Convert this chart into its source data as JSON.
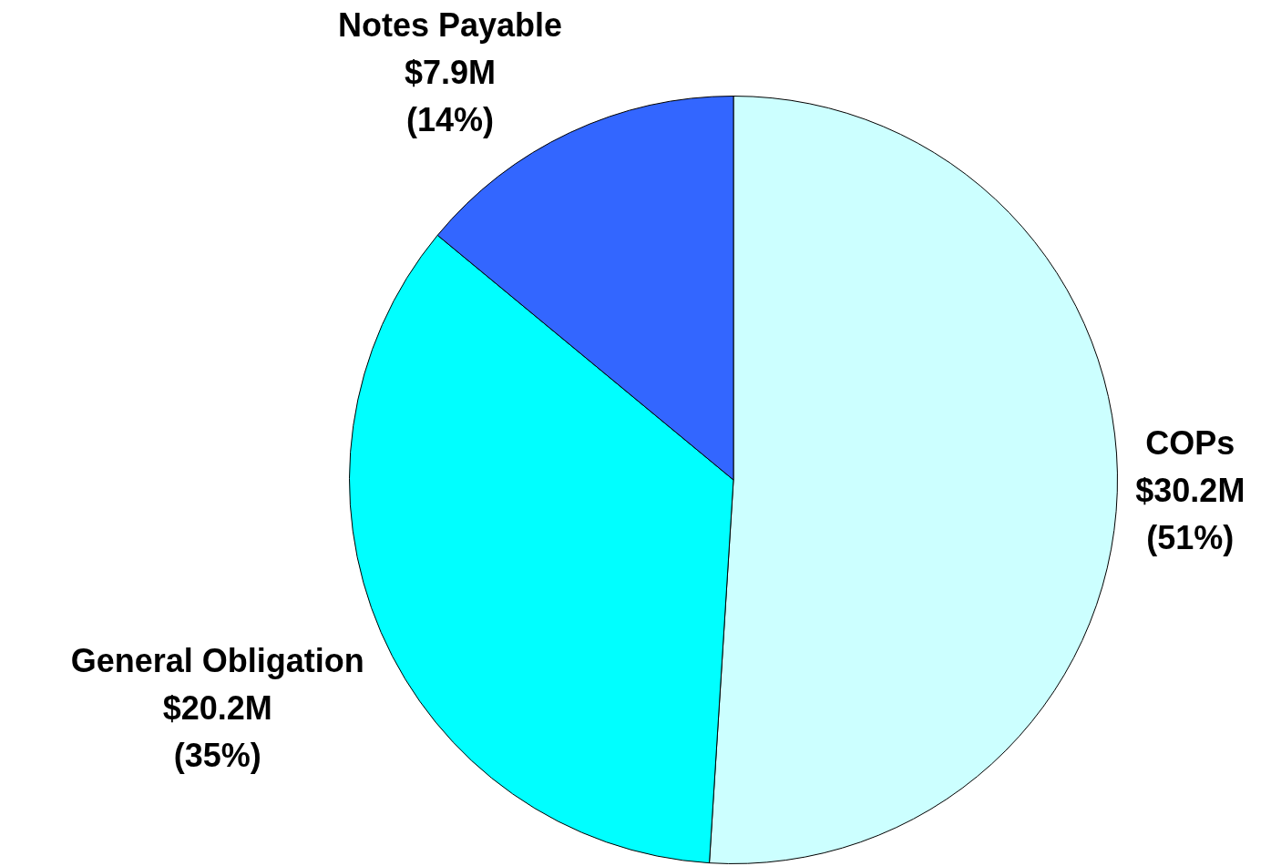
{
  "chart_data": {
    "type": "pie",
    "categories": [
      "COPs",
      "General Obligation",
      "Notes Payable"
    ],
    "values": [
      51,
      35,
      14
    ],
    "colors": [
      "#ccffff",
      "#00ffff",
      "#3366ff"
    ],
    "value_labels": [
      "$30.2M\n(51%)",
      "$20.2M\n(35%)",
      "$7.9M\n(14%)"
    ],
    "legend": false
  }
}
